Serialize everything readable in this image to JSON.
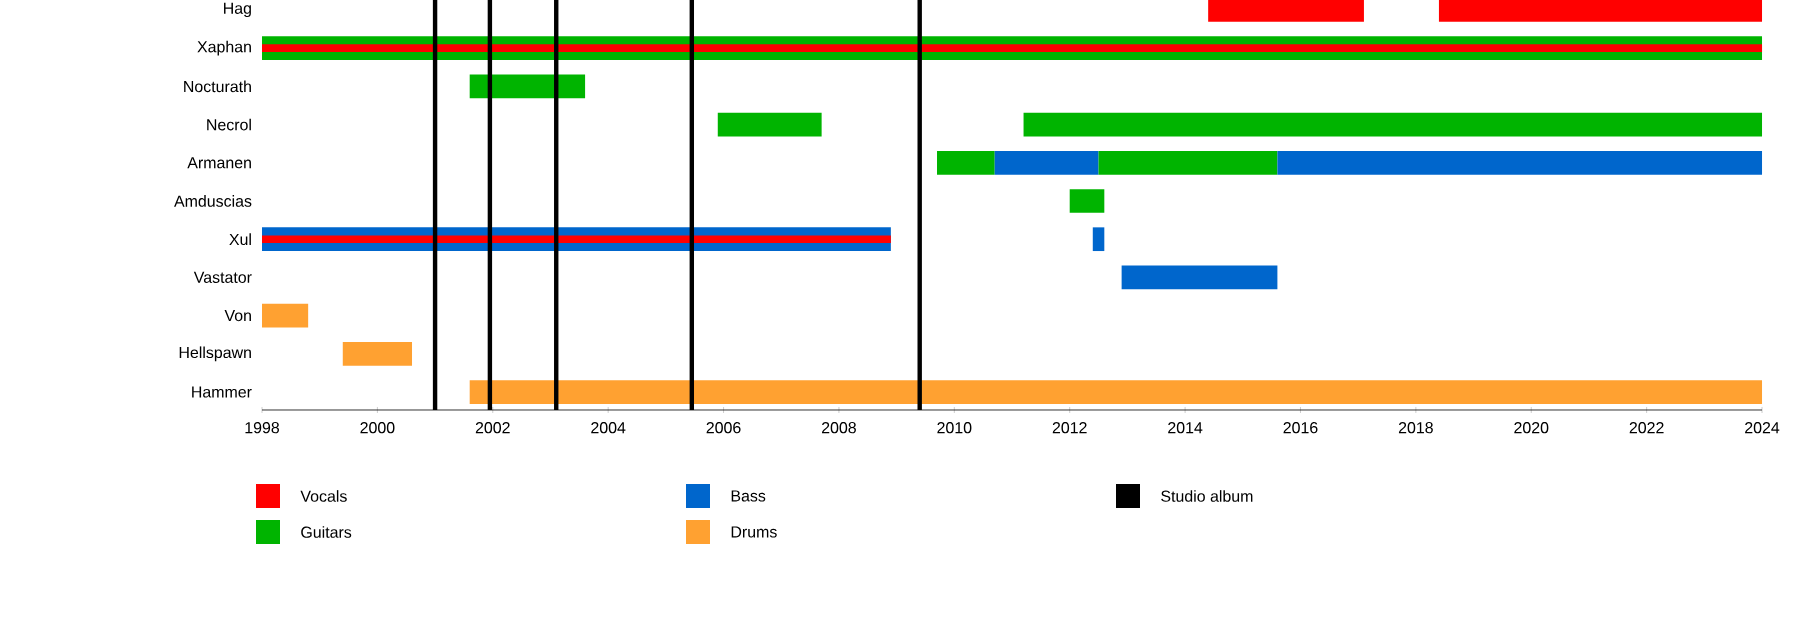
{
  "chart_data": {
    "type": "bar",
    "orientation": "horizontal",
    "categories": [
      "Hag",
      "Xaphan",
      "Nocturath",
      "Necrol",
      "Armanen",
      "Amduscias",
      "Xul",
      "Vastator",
      "Von",
      "Hellspawn",
      "Hammer"
    ],
    "series": [
      {
        "name": "Vocals",
        "color": "#ff0000",
        "base": [
          2014.4,
          null,
          null,
          null,
          null,
          null,
          null,
          null,
          null,
          null,
          null
        ],
        "values": [
          2.7,
          null,
          null,
          null,
          null,
          null,
          null,
          null,
          null,
          null,
          null
        ]
      },
      {
        "name": "Guitars",
        "color": "#00b400",
        "base": [
          null,
          1998,
          2001.6,
          2005.9,
          2009.7,
          2012.0,
          null,
          null,
          null,
          null,
          null
        ],
        "values": [
          null,
          26,
          2.0,
          1.8,
          1.0,
          0.6,
          null,
          null,
          null,
          null,
          null
        ]
      },
      {
        "name": "Bass",
        "color": "#0066cc",
        "base": [
          null,
          null,
          null,
          null,
          2010.7,
          null,
          1998,
          2012.9,
          null,
          null,
          null
        ],
        "values": [
          null,
          null,
          null,
          null,
          1.8,
          null,
          10.9,
          2.7,
          null,
          null,
          null
        ]
      },
      {
        "name": "Drums",
        "color": "#ffa131",
        "base": [
          null,
          null,
          null,
          null,
          null,
          null,
          null,
          null,
          1998,
          1999.4,
          2001.6
        ],
        "values": [
          null,
          null,
          null,
          null,
          null,
          null,
          null,
          null,
          0.8,
          1.2,
          22.4
        ]
      },
      {
        "color": "#00b400",
        "base": [
          null,
          null,
          null,
          2011.2,
          2012.5,
          null,
          null,
          null,
          null,
          null,
          null
        ],
        "values": [
          null,
          null,
          null,
          12.8,
          3.1,
          null,
          null,
          null,
          null,
          null,
          null
        ]
      },
      {
        "color": "#0066cc",
        "base": [
          null,
          null,
          null,
          null,
          2015.6,
          null,
          2012.4,
          null,
          null,
          null,
          null
        ],
        "values": [
          null,
          null,
          null,
          null,
          8.4,
          null,
          0.2,
          null,
          null,
          null,
          null
        ]
      },
      {
        "color": "#ff0000",
        "base": [
          2018.4,
          1998,
          null,
          null,
          null,
          null,
          1998,
          null,
          null,
          null,
          null
        ],
        "values": [
          5.6,
          26,
          null,
          null,
          null,
          null,
          10.9,
          null,
          null,
          null,
          null
        ]
      }
    ],
    "xlim": [
      1998,
      2024
    ],
    "xticks": [
      1998,
      2000,
      2002,
      2004,
      2006,
      2008,
      2010,
      2012,
      2014,
      2016,
      2018,
      2020,
      2022,
      2024
    ],
    "ref_lines": [
      {
        "axis": "x",
        "value": 2001.0,
        "label": "Studio album",
        "color": "#000000"
      },
      {
        "axis": "x",
        "value": 2001.95,
        "color": "#000000"
      },
      {
        "axis": "x",
        "value": 2003.1,
        "color": "#000000"
      },
      {
        "axis": "x",
        "value": 2005.45,
        "color": "#000000"
      },
      {
        "axis": "x",
        "value": 2009.4,
        "color": "#000000"
      }
    ],
    "legend": "bottom"
  }
}
